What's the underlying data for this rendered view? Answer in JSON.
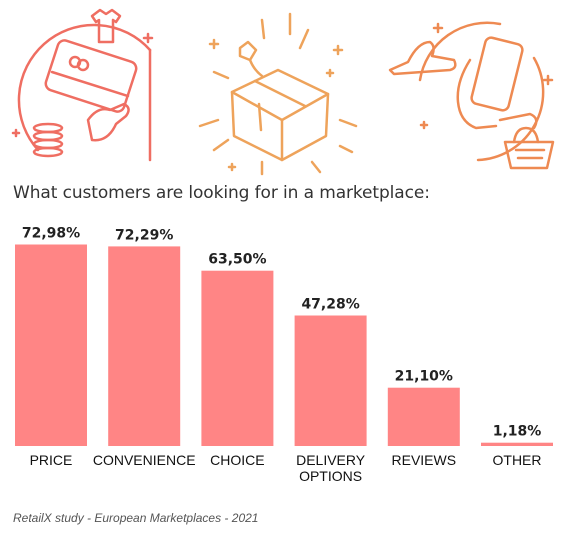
{
  "title": "What customers are looking for in a marketplace:",
  "source": "RetailX study - European Marketplaces - 2021",
  "colors": {
    "bar": "#ff8585",
    "icon_left": "#ef6e62",
    "icon_mid": "#eea35b",
    "icon_right": "#ee8a52"
  },
  "icons": [
    "card-and-coins-icon",
    "parcel-box-icon",
    "phone-shopping-icon"
  ],
  "chart_data": {
    "type": "bar",
    "categories": [
      "PRICE",
      "CONVENIENCE",
      "CHOICE",
      "DELIVERY OPTIONS",
      "REVIEWS",
      "OTHER"
    ],
    "category_lines": [
      [
        "PRICE"
      ],
      [
        "CONVENIENCE"
      ],
      [
        "CHOICE"
      ],
      [
        "DELIVERY",
        "OPTIONS"
      ],
      [
        "REVIEWS"
      ],
      [
        "OTHER"
      ]
    ],
    "values": [
      72.98,
      72.29,
      63.5,
      47.28,
      21.1,
      1.18
    ],
    "labels": [
      "72,98%",
      "72,29%",
      "63,50%",
      "47,28%",
      "21,10%",
      "1,18%"
    ],
    "ylim": [
      0,
      100
    ],
    "grid": false,
    "legend": "none",
    "title": "What customers are looking for in a marketplace:"
  }
}
